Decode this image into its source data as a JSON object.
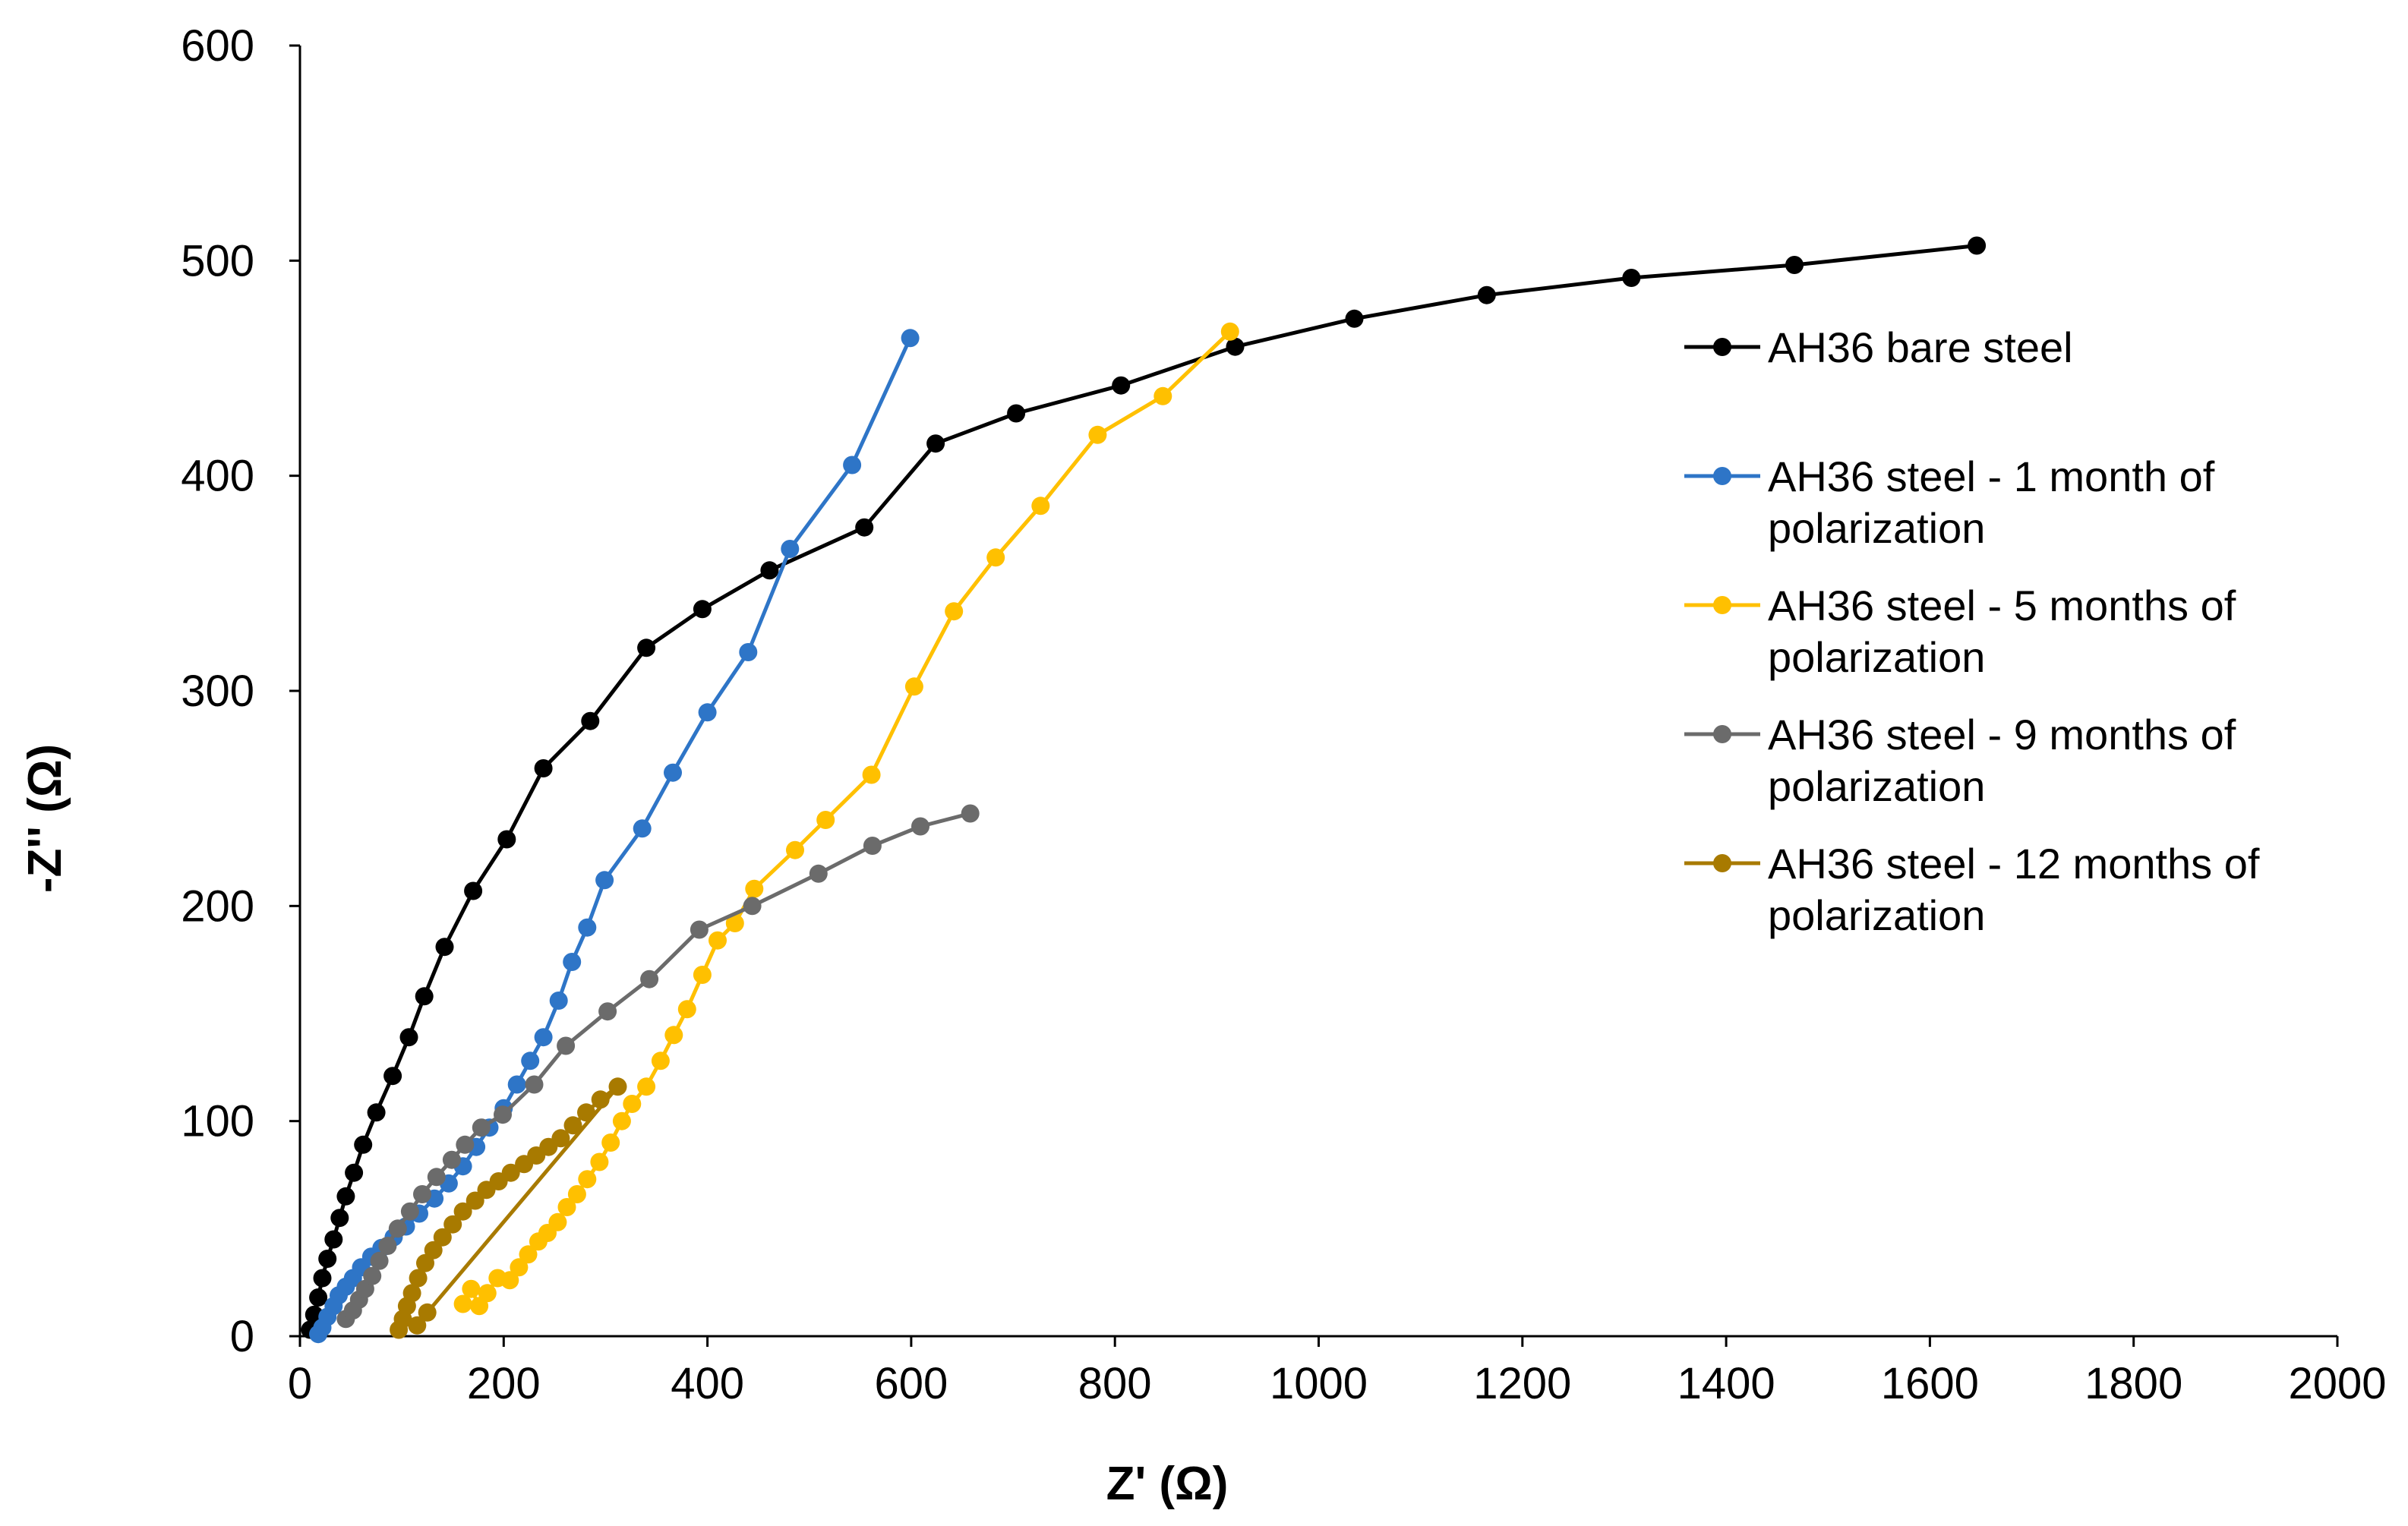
{
  "chart_data": {
    "type": "line",
    "title": "",
    "xlabel": "Z' (Ω)",
    "ylabel": "-Z'' (Ω)",
    "xlim": [
      0,
      2000
    ],
    "ylim": [
      0,
      600
    ],
    "xticks": [
      0,
      200,
      400,
      600,
      800,
      1000,
      1200,
      1400,
      1600,
      1800,
      2000
    ],
    "yticks": [
      0,
      100,
      200,
      300,
      400,
      500,
      600
    ],
    "grid": false,
    "legend_position": "right",
    "series": [
      {
        "name": "AH36 bare steel",
        "legend_lines": [
          "AH36 bare steel"
        ],
        "color": "#000000",
        "points": [
          [
            10,
            3
          ],
          [
            14,
            10
          ],
          [
            18,
            18
          ],
          [
            22,
            27
          ],
          [
            27,
            36
          ],
          [
            33,
            45
          ],
          [
            39,
            55
          ],
          [
            45,
            65
          ],
          [
            53,
            76
          ],
          [
            62,
            89
          ],
          [
            75,
            104
          ],
          [
            91,
            121
          ],
          [
            107,
            139
          ],
          [
            122,
            158
          ],
          [
            142,
            181
          ],
          [
            170,
            207
          ],
          [
            203,
            231
          ],
          [
            239,
            264
          ],
          [
            285,
            286
          ],
          [
            340,
            320
          ],
          [
            395,
            338
          ],
          [
            461,
            356
          ],
          [
            554,
            376
          ],
          [
            624,
            415
          ],
          [
            703,
            429
          ],
          [
            806,
            442
          ],
          [
            918,
            460
          ],
          [
            1035,
            473
          ],
          [
            1165,
            484
          ],
          [
            1307,
            492
          ],
          [
            1467,
            498
          ],
          [
            1646,
            507
          ]
        ]
      },
      {
        "name": "AH36 steel - 1 month of polarization",
        "legend_lines": [
          "AH36 steel - 1 month of",
          "polarization"
        ],
        "color": "#2E75C7",
        "points": [
          [
            18,
            1
          ],
          [
            22,
            4
          ],
          [
            27,
            9
          ],
          [
            33,
            14
          ],
          [
            38,
            19
          ],
          [
            45,
            23
          ],
          [
            52,
            27
          ],
          [
            60,
            32
          ],
          [
            70,
            37
          ],
          [
            80,
            41
          ],
          [
            92,
            46
          ],
          [
            104,
            51
          ],
          [
            117,
            57
          ],
          [
            132,
            64
          ],
          [
            146,
            71
          ],
          [
            160,
            79
          ],
          [
            173,
            88
          ],
          [
            186,
            97
          ],
          [
            200,
            106
          ],
          [
            213,
            117
          ],
          [
            226,
            128
          ],
          [
            239,
            139
          ],
          [
            254,
            156
          ],
          [
            267,
            174
          ],
          [
            282,
            190
          ],
          [
            299,
            212
          ],
          [
            336,
            236
          ],
          [
            366,
            262
          ],
          [
            400,
            290
          ],
          [
            440,
            318
          ],
          [
            481,
            366
          ],
          [
            542,
            405
          ],
          [
            599,
            464
          ]
        ]
      },
      {
        "name": "AH36 steel - 5 months of polarization",
        "legend_lines": [
          "AH36 steel - 5 months of",
          "polarization"
        ],
        "color": "#FFC000",
        "points": [
          [
            160,
            15
          ],
          [
            168,
            22
          ],
          [
            176,
            14
          ],
          [
            184,
            20
          ],
          [
            194,
            27
          ],
          [
            206,
            26
          ],
          [
            215,
            32
          ],
          [
            224,
            38
          ],
          [
            234,
            44
          ],
          [
            243,
            48
          ],
          [
            253,
            53
          ],
          [
            262,
            60
          ],
          [
            272,
            66
          ],
          [
            282,
            73
          ],
          [
            294,
            81
          ],
          [
            305,
            90
          ],
          [
            316,
            100
          ],
          [
            326,
            108
          ],
          [
            340,
            116
          ],
          [
            354,
            128
          ],
          [
            367,
            140
          ],
          [
            380,
            152
          ],
          [
            395,
            168
          ],
          [
            410,
            184
          ],
          [
            427,
            192
          ],
          [
            446,
            208
          ],
          [
            486,
            226
          ],
          [
            516,
            240
          ],
          [
            561,
            261
          ],
          [
            603,
            302
          ],
          [
            642,
            337
          ],
          [
            683,
            362
          ],
          [
            727,
            386
          ],
          [
            783,
            419
          ],
          [
            847,
            437
          ],
          [
            913,
            467
          ]
        ]
      },
      {
        "name": "AH36 steel - 9 months of polarization",
        "legend_lines": [
          "AH36 steel - 9 months of",
          "polarization"
        ],
        "color": "#6B6B6B",
        "points": [
          [
            45,
            8
          ],
          [
            52,
            12
          ],
          [
            58,
            17
          ],
          [
            64,
            22
          ],
          [
            71,
            28
          ],
          [
            78,
            35
          ],
          [
            86,
            42
          ],
          [
            96,
            50
          ],
          [
            108,
            58
          ],
          [
            120,
            66
          ],
          [
            134,
            74
          ],
          [
            149,
            82
          ],
          [
            162,
            89
          ],
          [
            178,
            97
          ],
          [
            199,
            103
          ],
          [
            230,
            117
          ],
          [
            261,
            135
          ],
          [
            302,
            151
          ],
          [
            343,
            166
          ],
          [
            392,
            189
          ],
          [
            444,
            200
          ],
          [
            509,
            215
          ],
          [
            562,
            228
          ],
          [
            609,
            237
          ],
          [
            658,
            243
          ]
        ]
      },
      {
        "name": "AH36 steel - 12 months of polarization",
        "legend_lines": [
          "AH36 steel - 12 months of",
          "polarization"
        ],
        "color": "#A87A00",
        "points": [
          [
            97,
            3
          ],
          [
            101,
            8
          ],
          [
            105,
            14
          ],
          [
            110,
            20
          ],
          [
            116,
            27
          ],
          [
            123,
            34
          ],
          [
            131,
            40
          ],
          [
            140,
            46
          ],
          [
            150,
            52
          ],
          [
            160,
            58
          ],
          [
            172,
            63
          ],
          [
            183,
            68
          ],
          [
            195,
            72
          ],
          [
            207,
            76
          ],
          [
            220,
            80
          ],
          [
            232,
            84
          ],
          [
            244,
            88
          ],
          [
            256,
            92
          ],
          [
            268,
            98
          ],
          [
            281,
            104
          ],
          [
            295,
            110
          ],
          [
            312,
            116
          ],
          [
            125,
            11
          ],
          [
            115,
            5
          ]
        ]
      }
    ]
  }
}
